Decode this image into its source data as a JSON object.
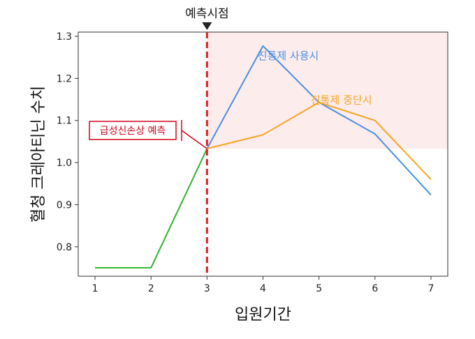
{
  "chart_data": {
    "type": "line",
    "xlabel": "입원기간",
    "ylabel": "혈청 크레아티닌 수치",
    "xlim": [
      0.7,
      7.3
    ],
    "ylim": [
      0.73,
      1.31
    ],
    "x_ticks": [
      1,
      2,
      3,
      4,
      5,
      6,
      7
    ],
    "y_ticks": [
      0.8,
      0.9,
      1.0,
      1.1,
      1.2,
      1.3
    ],
    "y_tick_labels": [
      "0.8",
      "0.9",
      "1.0",
      "1.1",
      "1.2",
      "1.3"
    ],
    "series": [
      {
        "key": "baseline",
        "color": "#2db52d",
        "x": [
          1,
          2,
          3
        ],
        "y": [
          0.75,
          0.75,
          1.033
        ]
      },
      {
        "key": "continue",
        "name": "진통제 사용시",
        "color": "#4a90e2",
        "x": [
          3,
          4,
          5,
          6,
          7
        ],
        "y": [
          1.033,
          1.277,
          1.143,
          1.068,
          0.923
        ]
      },
      {
        "key": "stop",
        "name": "진통제 중단시",
        "color": "#f5a623",
        "x": [
          3,
          4,
          5,
          6,
          7
        ],
        "y": [
          1.033,
          1.066,
          1.143,
          1.1,
          0.96
        ]
      }
    ],
    "shaded_region": {
      "x": [
        3,
        7.3
      ],
      "y": [
        1.033,
        1.31
      ],
      "color": "#fdecec"
    },
    "prediction_line": {
      "x": 3,
      "label": "예측시점",
      "color": "#e02020"
    },
    "annotation": {
      "label": "급성신손상 예측",
      "x": 3,
      "y": 1.033,
      "color": "#d0021b"
    },
    "series_labels": [
      {
        "key": "continue",
        "text": "진통제 사용시",
        "x": 4.45,
        "y": 1.245,
        "color": "#4a90e2"
      },
      {
        "key": "stop",
        "text": "진통제 중단시",
        "x": 5.4,
        "y": 1.14,
        "color": "#f5a623"
      }
    ],
    "grid": false
  }
}
